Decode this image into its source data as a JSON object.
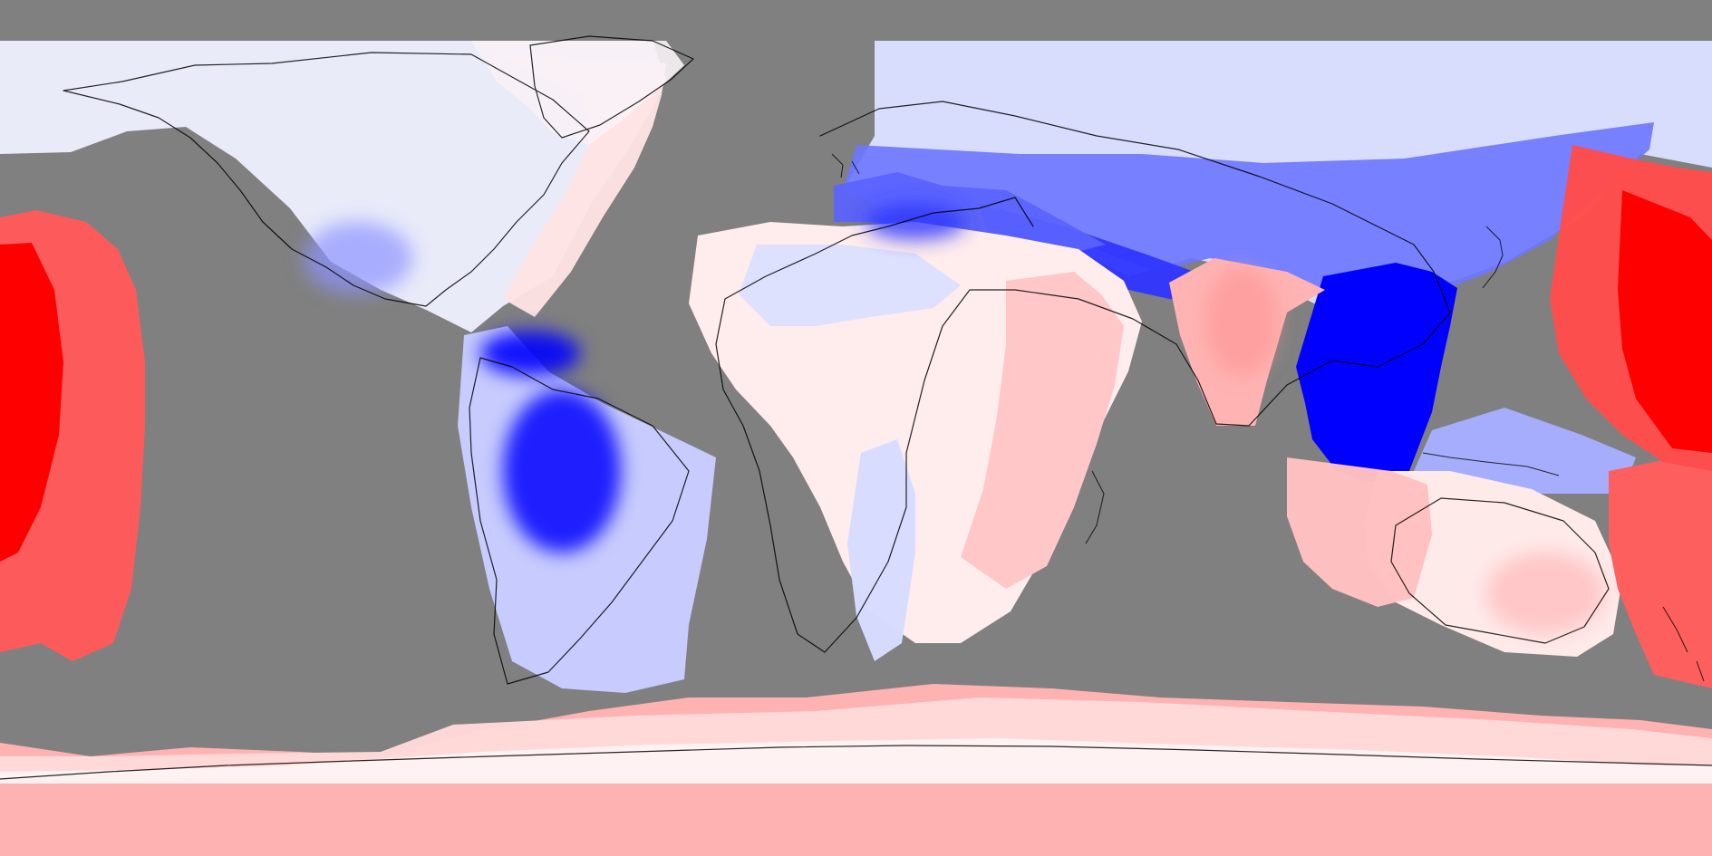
{
  "map": {
    "projection": "equirectangular",
    "ocean_mask_color": "#808080",
    "coastline_color": "#000000",
    "colormap": "bwr",
    "colors": {
      "strong_blue": "#0000FF",
      "mid_blue": "#3A3AFF",
      "light_blue": "#A9A9FF",
      "pale_blue": "#E6E6FF",
      "white": "#FFFFFF",
      "pale_red": "#FFE2E2",
      "light_red": "#FFB0B0",
      "mid_red": "#FF6A6A",
      "strong_red": "#FF0000"
    },
    "visible_text": []
  }
}
